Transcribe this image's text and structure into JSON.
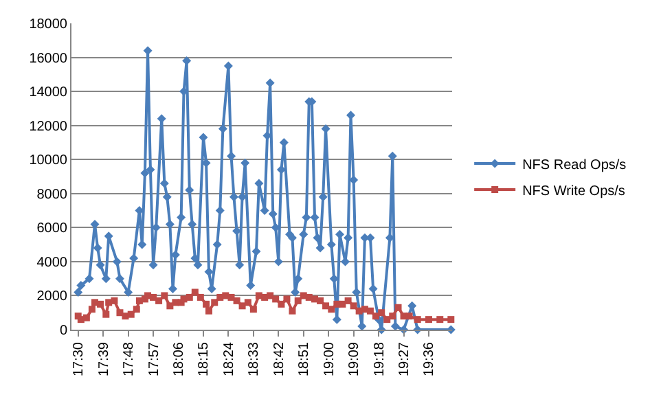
{
  "chart_data": {
    "type": "line",
    "xlim": [
      17.46,
      19.74
    ],
    "xticks": [
      {
        "value": 17.5,
        "label": "17:30"
      },
      {
        "value": 17.65,
        "label": "17:39"
      },
      {
        "value": 17.8,
        "label": "17:48"
      },
      {
        "value": 17.95,
        "label": "17:57"
      },
      {
        "value": 18.1,
        "label": "18:06"
      },
      {
        "value": 18.25,
        "label": "18:15"
      },
      {
        "value": 18.4,
        "label": "18:24"
      },
      {
        "value": 18.55,
        "label": "18:33"
      },
      {
        "value": 18.7,
        "label": "18:42"
      },
      {
        "value": 18.85,
        "label": "18:51"
      },
      {
        "value": 19.0,
        "label": "19:00"
      },
      {
        "value": 19.15,
        "label": "19:09"
      },
      {
        "value": 19.3,
        "label": "19:18"
      },
      {
        "value": 19.45,
        "label": "19:27"
      },
      {
        "value": 19.6,
        "label": "19:36"
      }
    ],
    "ylim": [
      0,
      18000
    ],
    "yticks": [
      0,
      2000,
      4000,
      6000,
      8000,
      10000,
      12000,
      14000,
      16000,
      18000
    ],
    "grid": "y",
    "legend": "right",
    "line_style": "solid",
    "series": [
      {
        "name": "NFS Read Ops/s",
        "color": "#4a7ebb",
        "marker": "diamond",
        "x": [
          17.5,
          17.517,
          17.567,
          17.6,
          17.617,
          17.633,
          17.667,
          17.683,
          17.733,
          17.75,
          17.8,
          17.833,
          17.867,
          17.883,
          17.9,
          17.917,
          17.933,
          17.95,
          17.967,
          18.0,
          18.017,
          18.033,
          18.05,
          18.067,
          18.083,
          18.117,
          18.133,
          18.15,
          18.167,
          18.183,
          18.2,
          18.217,
          18.25,
          18.267,
          18.283,
          18.3,
          18.333,
          18.35,
          18.367,
          18.4,
          18.417,
          18.433,
          18.45,
          18.467,
          18.483,
          18.5,
          18.533,
          18.567,
          18.583,
          18.617,
          18.633,
          18.65,
          18.667,
          18.683,
          18.7,
          18.717,
          18.733,
          18.767,
          18.783,
          18.8,
          18.817,
          18.85,
          18.867,
          18.883,
          18.9,
          18.917,
          18.933,
          18.95,
          18.967,
          18.983,
          19.017,
          19.033,
          19.05,
          19.067,
          19.1,
          19.117,
          19.133,
          19.15,
          19.167,
          19.2,
          19.217,
          19.25,
          19.267,
          19.3,
          19.317,
          19.367,
          19.383,
          19.4,
          19.45,
          19.5,
          19.533,
          19.733
        ],
        "values": [
          2200,
          2600,
          3000,
          6200,
          4800,
          3800,
          3000,
          5500,
          4000,
          3000,
          2200,
          4200,
          7000,
          5000,
          9200,
          16400,
          9400,
          3800,
          6000,
          12400,
          8600,
          7800,
          6200,
          2400,
          4400,
          6600,
          14000,
          15800,
          8200,
          6200,
          4200,
          3800,
          11300,
          9800,
          3400,
          2400,
          5000,
          7000,
          11800,
          15500,
          10200,
          7800,
          5800,
          3800,
          7800,
          9800,
          2600,
          4600,
          8600,
          7000,
          11400,
          14500,
          6800,
          6000,
          4000,
          9400,
          11000,
          5600,
          5400,
          2200,
          3000,
          5600,
          6600,
          13400,
          13400,
          6600,
          5400,
          4800,
          7800,
          11800,
          5000,
          3000,
          600,
          5600,
          4000,
          5400,
          12600,
          8800,
          2200,
          200,
          5400,
          5400,
          2400,
          600,
          0,
          5400,
          10200,
          200,
          0,
          1400,
          0,
          0
        ]
      },
      {
        "name": "NFS Write Ops/s",
        "color": "#be4b48",
        "marker": "square",
        "x": [
          17.5,
          17.517,
          17.55,
          17.583,
          17.6,
          17.633,
          17.667,
          17.683,
          17.717,
          17.75,
          17.783,
          17.817,
          17.85,
          17.867,
          17.9,
          17.917,
          17.95,
          17.983,
          18.017,
          18.05,
          18.083,
          18.117,
          18.133,
          18.167,
          18.2,
          18.233,
          18.267,
          18.283,
          18.317,
          18.35,
          18.383,
          18.417,
          18.45,
          18.483,
          18.517,
          18.55,
          18.583,
          18.617,
          18.65,
          18.683,
          18.717,
          18.75,
          18.783,
          18.817,
          18.85,
          18.883,
          18.917,
          18.95,
          18.983,
          19.017,
          19.05,
          19.083,
          19.117,
          19.15,
          19.183,
          19.217,
          19.25,
          19.283,
          19.317,
          19.35,
          19.383,
          19.417,
          19.45,
          19.483,
          19.533,
          19.6,
          19.667,
          19.733
        ],
        "values": [
          800,
          600,
          700,
          1200,
          1600,
          1500,
          900,
          1600,
          1700,
          1000,
          800,
          900,
          1200,
          1700,
          1800,
          2000,
          1900,
          1700,
          2000,
          1400,
          1600,
          1600,
          1800,
          1900,
          2200,
          1900,
          1500,
          1100,
          1600,
          1900,
          2000,
          1900,
          1700,
          1400,
          1600,
          1200,
          2000,
          1900,
          2000,
          1800,
          1500,
          1800,
          1100,
          1700,
          2000,
          1900,
          1800,
          1700,
          1400,
          1200,
          1500,
          1500,
          1700,
          1400,
          1100,
          1200,
          1100,
          800,
          1000,
          600,
          800,
          1300,
          800,
          800,
          600,
          600,
          600,
          600
        ]
      }
    ]
  }
}
